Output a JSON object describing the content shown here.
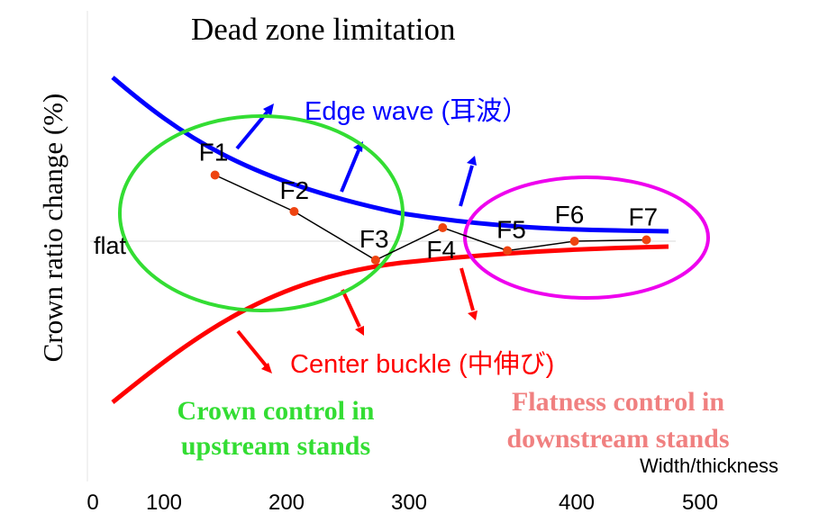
{
  "title": "Dead zone limitation",
  "y_axis_label": "Crown ratio change (%)",
  "x_axis_label": "Width/thickness",
  "x_ticks": [
    "0",
    "100",
    "200",
    "300",
    "400",
    "500"
  ],
  "flat_label": "flat",
  "edge_wave_label": "Edge wave (耳波）",
  "center_buckle_label": "Center buckle (中伸び)",
  "crown_control_label": [
    "Crown control in",
    "upstream stands"
  ],
  "flatness_control_label": [
    "Flatness control in",
    "downstream stands"
  ],
  "stands": [
    {
      "label": "F1",
      "x": 102,
      "y": 0.49
    },
    {
      "label": "F2",
      "x": 168,
      "y": 0.22
    },
    {
      "label": "F3",
      "x": 236,
      "y": -0.14
    },
    {
      "label": "F4",
      "x": 292,
      "y": 0.1
    },
    {
      "label": "F5",
      "x": 346,
      "y": -0.07
    },
    {
      "label": "F6",
      "x": 402,
      "y": 0.0
    },
    {
      "label": "F7",
      "x": 462,
      "y": 0.01
    }
  ],
  "colors": {
    "edge_wave": "#0000ff",
    "center_buckle": "#ff0000",
    "crown_control": "#33dd33",
    "flatness_control": "#ee00ee",
    "flatness_text": "#f08080",
    "points": "#ee4411"
  }
}
